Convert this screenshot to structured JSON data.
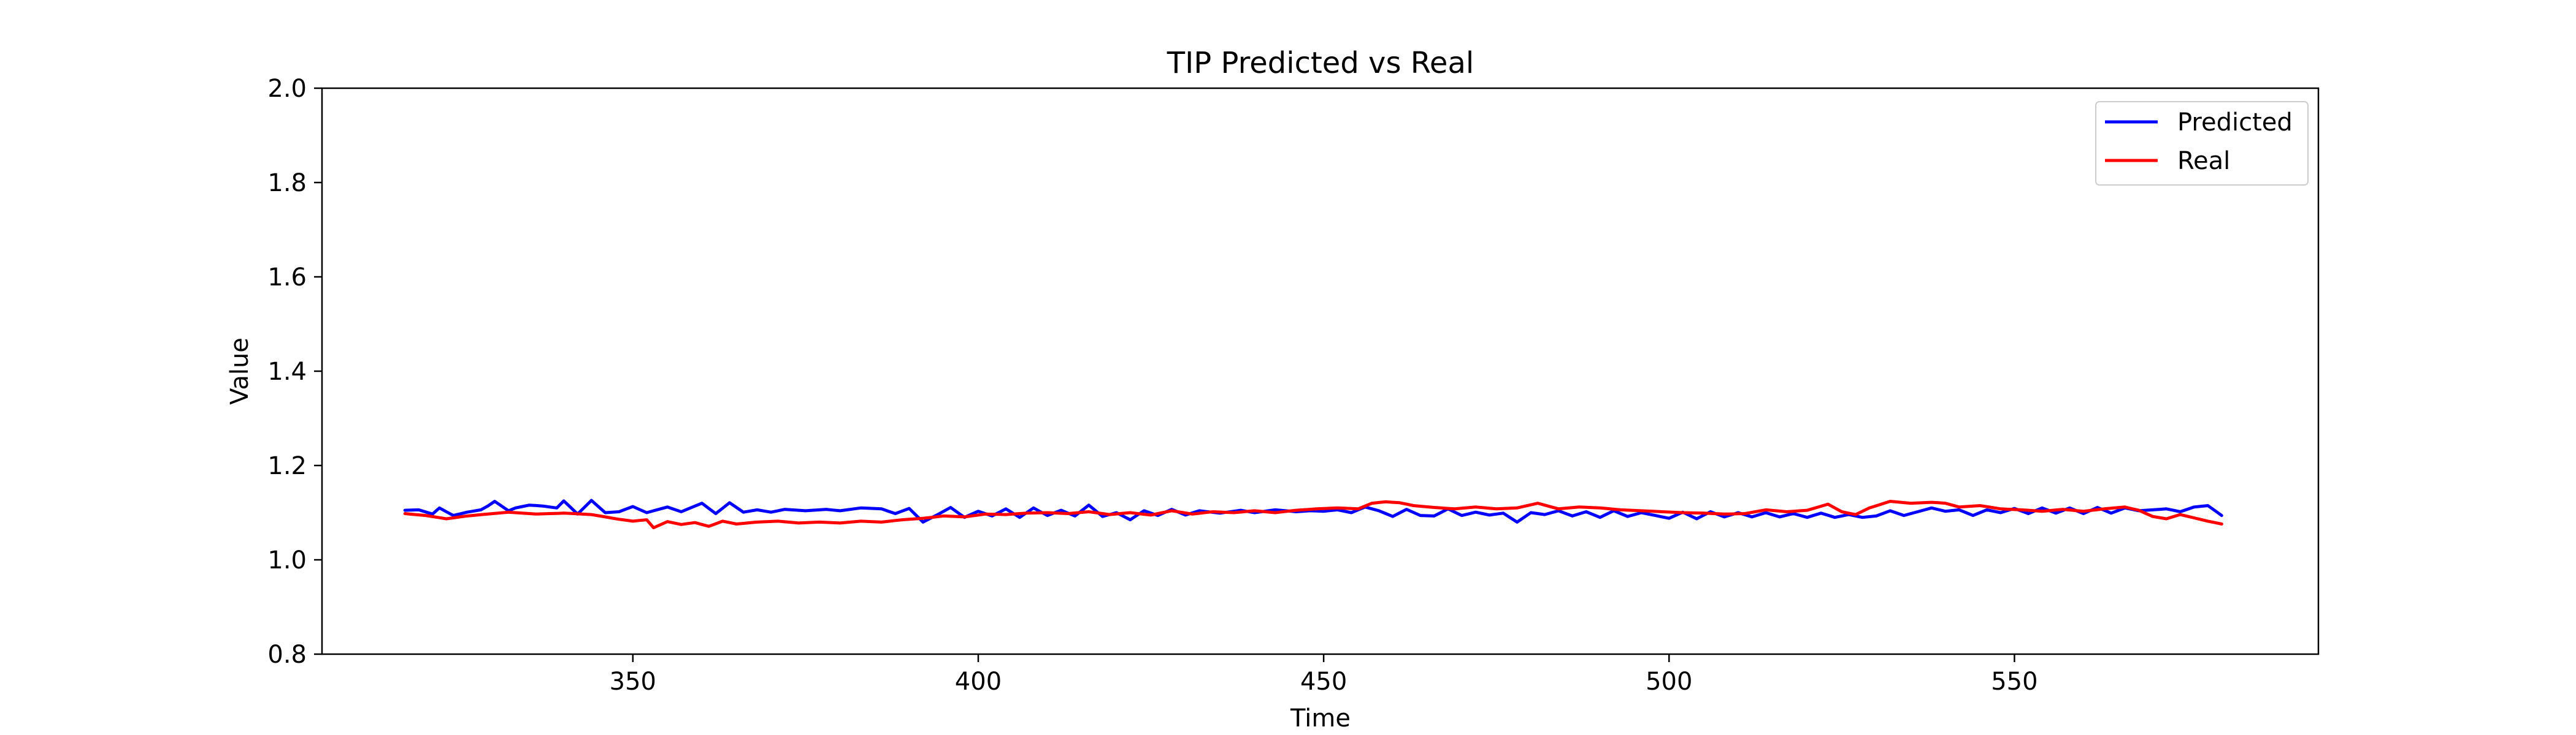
{
  "chart_data": {
    "type": "line",
    "title": "TIP Predicted vs Real",
    "xlabel": "Time",
    "ylabel": "Value",
    "xlim": [
      305,
      594
    ],
    "ylim": [
      0.8,
      2.0
    ],
    "x_ticks": [
      350,
      400,
      450,
      500,
      550
    ],
    "y_ticks": [
      0.8,
      1.0,
      1.2,
      1.4,
      1.6,
      1.8,
      2.0
    ],
    "x_tick_labels": [
      "350",
      "400",
      "450",
      "500",
      "550"
    ],
    "y_tick_labels": [
      "0.8",
      "1.0",
      "1.2",
      "1.4",
      "1.6",
      "1.8",
      "2.0"
    ],
    "grid": false,
    "legend_position": "top-right",
    "x": {
      "start": 317,
      "end": 580,
      "step": 1
    },
    "series": [
      {
        "name": "Predicted",
        "color": "#0000ff",
        "anchors": [
          [
            317,
            1.105
          ],
          [
            319,
            1.106
          ],
          [
            321,
            1.097
          ],
          [
            322,
            1.11
          ],
          [
            324,
            1.094
          ],
          [
            326,
            1.101
          ],
          [
            328,
            1.106
          ],
          [
            329,
            1.114
          ],
          [
            330,
            1.124
          ],
          [
            332,
            1.104
          ],
          [
            333,
            1.11
          ],
          [
            335,
            1.116
          ],
          [
            337,
            1.114
          ],
          [
            339,
            1.11
          ],
          [
            340,
            1.125
          ],
          [
            342,
            1.097
          ],
          [
            344,
            1.126
          ],
          [
            346,
            1.1
          ],
          [
            348,
            1.102
          ],
          [
            350,
            1.113
          ],
          [
            352,
            1.1
          ],
          [
            355,
            1.112
          ],
          [
            357,
            1.102
          ],
          [
            360,
            1.12
          ],
          [
            362,
            1.098
          ],
          [
            364,
            1.121
          ],
          [
            366,
            1.101
          ],
          [
            368,
            1.106
          ],
          [
            370,
            1.101
          ],
          [
            372,
            1.107
          ],
          [
            375,
            1.104
          ],
          [
            378,
            1.107
          ],
          [
            380,
            1.104
          ],
          [
            383,
            1.11
          ],
          [
            386,
            1.108
          ],
          [
            388,
            1.098
          ],
          [
            390,
            1.109
          ],
          [
            392,
            1.08
          ],
          [
            394,
            1.095
          ],
          [
            396,
            1.111
          ],
          [
            398,
            1.09
          ],
          [
            400,
            1.103
          ],
          [
            402,
            1.093
          ],
          [
            404,
            1.108
          ],
          [
            406,
            1.09
          ],
          [
            408,
            1.11
          ],
          [
            410,
            1.094
          ],
          [
            412,
            1.105
          ],
          [
            414,
            1.093
          ],
          [
            416,
            1.116
          ],
          [
            418,
            1.092
          ],
          [
            420,
            1.1
          ],
          [
            422,
            1.085
          ],
          [
            424,
            1.104
          ],
          [
            426,
            1.094
          ],
          [
            428,
            1.107
          ],
          [
            430,
            1.095
          ],
          [
            432,
            1.104
          ],
          [
            435,
            1.099
          ],
          [
            438,
            1.105
          ],
          [
            440,
            1.1
          ],
          [
            443,
            1.106
          ],
          [
            446,
            1.102
          ],
          [
            448,
            1.104
          ],
          [
            450,
            1.103
          ],
          [
            452,
            1.106
          ],
          [
            454,
            1.1
          ],
          [
            456,
            1.112
          ],
          [
            458,
            1.104
          ],
          [
            460,
            1.092
          ],
          [
            462,
            1.107
          ],
          [
            464,
            1.094
          ],
          [
            466,
            1.093
          ],
          [
            468,
            1.108
          ],
          [
            470,
            1.094
          ],
          [
            472,
            1.101
          ],
          [
            474,
            1.095
          ],
          [
            476,
            1.099
          ],
          [
            478,
            1.08
          ],
          [
            480,
            1.1
          ],
          [
            482,
            1.096
          ],
          [
            484,
            1.104
          ],
          [
            486,
            1.093
          ],
          [
            488,
            1.102
          ],
          [
            490,
            1.09
          ],
          [
            492,
            1.104
          ],
          [
            494,
            1.092
          ],
          [
            496,
            1.1
          ],
          [
            498,
            1.094
          ],
          [
            500,
            1.088
          ],
          [
            502,
            1.101
          ],
          [
            504,
            1.087
          ],
          [
            506,
            1.102
          ],
          [
            508,
            1.091
          ],
          [
            510,
            1.1
          ],
          [
            512,
            1.091
          ],
          [
            514,
            1.1
          ],
          [
            516,
            1.091
          ],
          [
            518,
            1.098
          ],
          [
            520,
            1.09
          ],
          [
            522,
            1.099
          ],
          [
            524,
            1.09
          ],
          [
            526,
            1.096
          ],
          [
            528,
            1.09
          ],
          [
            530,
            1.093
          ],
          [
            532,
            1.104
          ],
          [
            534,
            1.094
          ],
          [
            536,
            1.102
          ],
          [
            538,
            1.11
          ],
          [
            540,
            1.103
          ],
          [
            542,
            1.106
          ],
          [
            544,
            1.094
          ],
          [
            546,
            1.106
          ],
          [
            548,
            1.1
          ],
          [
            550,
            1.109
          ],
          [
            552,
            1.098
          ],
          [
            554,
            1.11
          ],
          [
            556,
            1.099
          ],
          [
            558,
            1.11
          ],
          [
            560,
            1.098
          ],
          [
            562,
            1.111
          ],
          [
            564,
            1.099
          ],
          [
            566,
            1.11
          ],
          [
            568,
            1.104
          ],
          [
            570,
            1.106
          ],
          [
            572,
            1.108
          ],
          [
            574,
            1.102
          ],
          [
            576,
            1.112
          ],
          [
            578,
            1.115
          ],
          [
            580,
            1.094
          ]
        ]
      },
      {
        "name": "Real",
        "color": "#ff0000",
        "anchors": [
          [
            317,
            1.098
          ],
          [
            320,
            1.094
          ],
          [
            323,
            1.087
          ],
          [
            326,
            1.093
          ],
          [
            329,
            1.097
          ],
          [
            332,
            1.101
          ],
          [
            336,
            1.097
          ],
          [
            340,
            1.099
          ],
          [
            344,
            1.096
          ],
          [
            348,
            1.086
          ],
          [
            350,
            1.082
          ],
          [
            352,
            1.085
          ],
          [
            353,
            1.068
          ],
          [
            355,
            1.081
          ],
          [
            357,
            1.075
          ],
          [
            359,
            1.079
          ],
          [
            361,
            1.071
          ],
          [
            363,
            1.082
          ],
          [
            365,
            1.076
          ],
          [
            368,
            1.08
          ],
          [
            371,
            1.082
          ],
          [
            374,
            1.078
          ],
          [
            377,
            1.08
          ],
          [
            380,
            1.078
          ],
          [
            383,
            1.082
          ],
          [
            386,
            1.08
          ],
          [
            389,
            1.085
          ],
          [
            392,
            1.088
          ],
          [
            395,
            1.093
          ],
          [
            398,
            1.091
          ],
          [
            401,
            1.097
          ],
          [
            404,
            1.096
          ],
          [
            407,
            1.099
          ],
          [
            410,
            1.1
          ],
          [
            413,
            1.098
          ],
          [
            416,
            1.102
          ],
          [
            419,
            1.096
          ],
          [
            422,
            1.1
          ],
          [
            425,
            1.095
          ],
          [
            428,
            1.104
          ],
          [
            431,
            1.097
          ],
          [
            434,
            1.102
          ],
          [
            437,
            1.1
          ],
          [
            440,
            1.104
          ],
          [
            443,
            1.1
          ],
          [
            446,
            1.105
          ],
          [
            449,
            1.108
          ],
          [
            452,
            1.11
          ],
          [
            455,
            1.108
          ],
          [
            457,
            1.12
          ],
          [
            459,
            1.123
          ],
          [
            461,
            1.121
          ],
          [
            463,
            1.115
          ],
          [
            466,
            1.111
          ],
          [
            469,
            1.108
          ],
          [
            472,
            1.112
          ],
          [
            475,
            1.108
          ],
          [
            478,
            1.11
          ],
          [
            481,
            1.12
          ],
          [
            484,
            1.108
          ],
          [
            487,
            1.112
          ],
          [
            490,
            1.11
          ],
          [
            493,
            1.106
          ],
          [
            496,
            1.104
          ],
          [
            499,
            1.102
          ],
          [
            502,
            1.1
          ],
          [
            505,
            1.099
          ],
          [
            508,
            1.097
          ],
          [
            511,
            1.098
          ],
          [
            514,
            1.106
          ],
          [
            517,
            1.102
          ],
          [
            520,
            1.105
          ],
          [
            523,
            1.118
          ],
          [
            525,
            1.102
          ],
          [
            527,
            1.096
          ],
          [
            529,
            1.11
          ],
          [
            532,
            1.124
          ],
          [
            535,
            1.12
          ],
          [
            538,
            1.122
          ],
          [
            540,
            1.12
          ],
          [
            542,
            1.112
          ],
          [
            545,
            1.115
          ],
          [
            548,
            1.108
          ],
          [
            551,
            1.106
          ],
          [
            554,
            1.103
          ],
          [
            557,
            1.107
          ],
          [
            560,
            1.103
          ],
          [
            563,
            1.108
          ],
          [
            566,
            1.112
          ],
          [
            568,
            1.105
          ],
          [
            570,
            1.092
          ],
          [
            572,
            1.087
          ],
          [
            574,
            1.096
          ],
          [
            576,
            1.089
          ],
          [
            578,
            1.082
          ],
          [
            580,
            1.076
          ]
        ]
      }
    ]
  }
}
